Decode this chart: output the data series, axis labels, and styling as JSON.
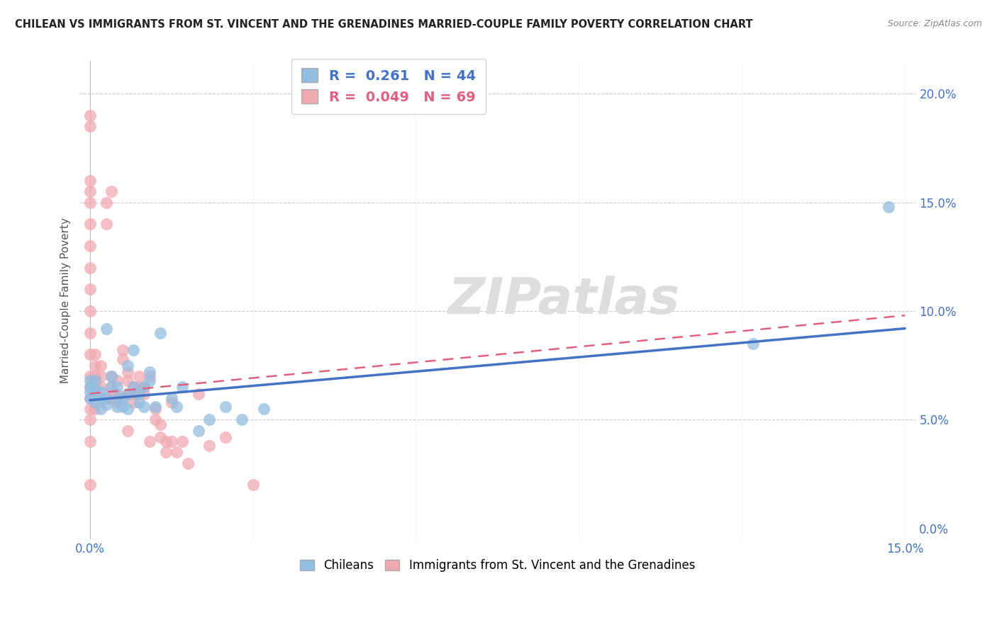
{
  "title": "CHILEAN VS IMMIGRANTS FROM ST. VINCENT AND THE GRENADINES MARRIED-COUPLE FAMILY POVERTY CORRELATION CHART",
  "source": "Source: ZipAtlas.com",
  "ylabel": "Married-Couple Family Poverty",
  "xlim": [
    -0.002,
    0.152
  ],
  "ylim": [
    -0.005,
    0.215
  ],
  "xticks": [
    0.0,
    0.03,
    0.06,
    0.09,
    0.12,
    0.15
  ],
  "yticks": [
    0.0,
    0.05,
    0.1,
    0.15,
    0.2
  ],
  "xtick_labels_show": [
    "0.0%",
    "",
    "",
    "",
    "",
    "15.0%"
  ],
  "ytick_labels": [
    "0.0%",
    "5.0%",
    "10.0%",
    "15.0%",
    "20.0%"
  ],
  "blue_R": 0.261,
  "blue_N": 44,
  "pink_R": 0.049,
  "pink_N": 69,
  "blue_color": "#93bde0",
  "pink_color": "#f0a8b0",
  "blue_line_color": "#4472c4",
  "pink_line_color": "#e06080",
  "watermark": "ZIPatlas",
  "legend_label_blue": "Chileans",
  "legend_label_pink": "Immigrants from St. Vincent and the Grenadines",
  "blue_trend_x": [
    0.0,
    0.15
  ],
  "blue_trend_y": [
    0.059,
    0.092
  ],
  "pink_trend_x": [
    0.0,
    0.15
  ],
  "pink_trend_y": [
    0.062,
    0.098
  ],
  "blue_scatter_x": [
    0.0,
    0.0,
    0.0,
    0.0,
    0.001,
    0.001,
    0.001,
    0.001,
    0.002,
    0.002,
    0.002,
    0.003,
    0.003,
    0.003,
    0.004,
    0.004,
    0.005,
    0.005,
    0.005,
    0.006,
    0.006,
    0.007,
    0.007,
    0.007,
    0.008,
    0.008,
    0.009,
    0.009,
    0.01,
    0.01,
    0.011,
    0.011,
    0.012,
    0.013,
    0.015,
    0.016,
    0.017,
    0.02,
    0.022,
    0.025,
    0.028,
    0.032,
    0.122,
    0.147
  ],
  "blue_scatter_y": [
    0.06,
    0.063,
    0.065,
    0.068,
    0.058,
    0.061,
    0.064,
    0.068,
    0.055,
    0.06,
    0.063,
    0.057,
    0.06,
    0.092,
    0.065,
    0.07,
    0.056,
    0.06,
    0.065,
    0.056,
    0.06,
    0.055,
    0.062,
    0.075,
    0.065,
    0.082,
    0.058,
    0.062,
    0.056,
    0.065,
    0.068,
    0.072,
    0.056,
    0.09,
    0.06,
    0.056,
    0.065,
    0.045,
    0.05,
    0.056,
    0.05,
    0.055,
    0.085,
    0.148
  ],
  "pink_scatter_x": [
    0.0,
    0.0,
    0.0,
    0.0,
    0.0,
    0.0,
    0.0,
    0.0,
    0.0,
    0.0,
    0.0,
    0.0,
    0.0,
    0.0,
    0.0,
    0.0,
    0.0,
    0.0,
    0.0,
    0.001,
    0.001,
    0.001,
    0.001,
    0.001,
    0.001,
    0.002,
    0.002,
    0.002,
    0.003,
    0.003,
    0.003,
    0.004,
    0.004,
    0.004,
    0.004,
    0.005,
    0.005,
    0.005,
    0.006,
    0.006,
    0.006,
    0.007,
    0.007,
    0.007,
    0.007,
    0.008,
    0.008,
    0.008,
    0.009,
    0.009,
    0.01,
    0.01,
    0.011,
    0.011,
    0.012,
    0.012,
    0.013,
    0.013,
    0.014,
    0.014,
    0.015,
    0.015,
    0.016,
    0.017,
    0.018,
    0.02,
    0.022,
    0.025,
    0.03
  ],
  "pink_scatter_y": [
    0.19,
    0.185,
    0.16,
    0.155,
    0.15,
    0.14,
    0.13,
    0.12,
    0.11,
    0.1,
    0.09,
    0.08,
    0.07,
    0.065,
    0.06,
    0.055,
    0.05,
    0.04,
    0.02,
    0.08,
    0.075,
    0.07,
    0.065,
    0.06,
    0.055,
    0.075,
    0.07,
    0.065,
    0.15,
    0.14,
    0.06,
    0.155,
    0.07,
    0.065,
    0.06,
    0.068,
    0.062,
    0.058,
    0.078,
    0.082,
    0.06,
    0.068,
    0.072,
    0.062,
    0.045,
    0.062,
    0.065,
    0.058,
    0.065,
    0.07,
    0.062,
    0.065,
    0.07,
    0.04,
    0.05,
    0.055,
    0.042,
    0.048,
    0.035,
    0.04,
    0.058,
    0.04,
    0.035,
    0.04,
    0.03,
    0.062,
    0.038,
    0.042,
    0.02
  ]
}
